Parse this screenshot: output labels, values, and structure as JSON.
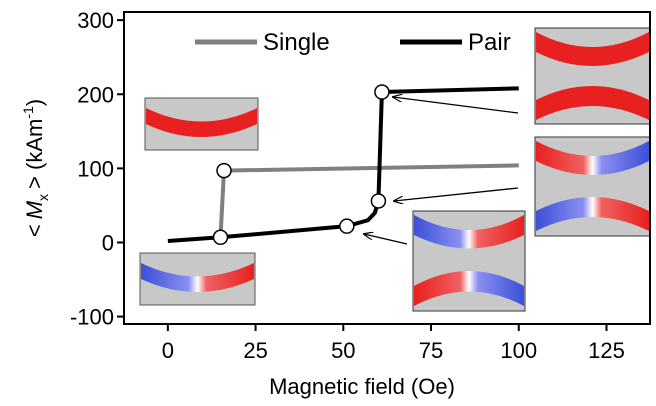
{
  "chart_data": {
    "type": "line",
    "xlabel": "Magnetic field (Oe)",
    "ylabel_parts": [
      "<",
      "M",
      "x",
      "> (kAm",
      "-1",
      ")"
    ],
    "xlim": [
      -12.5,
      137.4
    ],
    "ylim": [
      -110,
      311
    ],
    "xticks": [
      0,
      25,
      50,
      75,
      100,
      125
    ],
    "yticks": [
      -100,
      0,
      100,
      200,
      300
    ],
    "legend": "top",
    "series": [
      {
        "name": "Single",
        "color": "#808080",
        "x": [
          15,
          16,
          100
        ],
        "values": [
          7,
          97,
          104
        ]
      },
      {
        "name": "Pair",
        "color": "#000000",
        "x": [
          0,
          15,
          51,
          57,
          59,
          60,
          61,
          100
        ],
        "values": [
          2,
          7,
          22,
          30,
          40,
          56,
          203,
          208
        ]
      }
    ],
    "highlighted": {
      "x": [
        15,
        16,
        51,
        60,
        61
      ],
      "values": [
        7,
        97,
        22,
        56,
        203
      ]
    }
  }
}
